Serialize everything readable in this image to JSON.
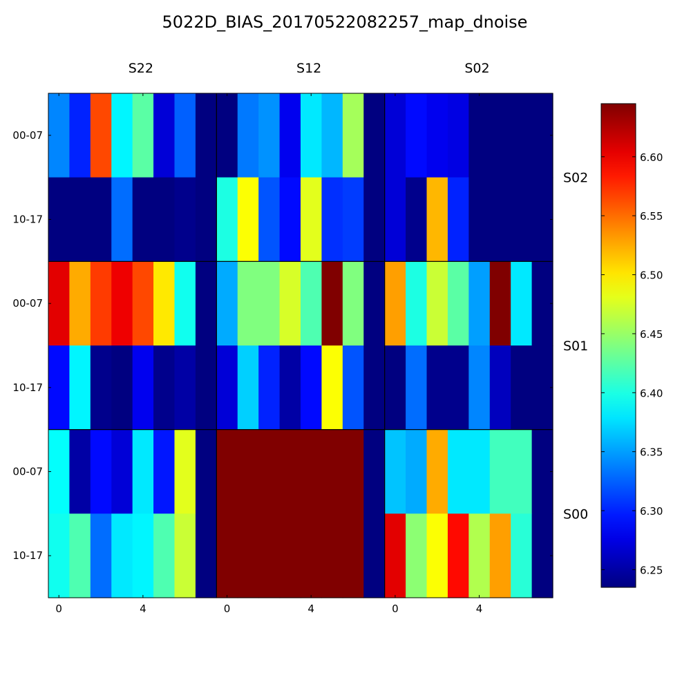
{
  "chart_data": {
    "type": "heatmap",
    "title": "5022D_BIAS_20170522082257_map_dnoise",
    "colormap": "jet",
    "vmin": 6.235,
    "vmax": 6.645,
    "colorbar_ticks": [
      "6.25",
      "6.30",
      "6.35",
      "6.40",
      "6.45",
      "6.50",
      "6.55",
      "6.60"
    ],
    "colorbar_tick_values": [
      6.25,
      6.3,
      6.35,
      6.4,
      6.45,
      6.5,
      6.55,
      6.6
    ],
    "column_labels": [
      "S22",
      "S12",
      "S02"
    ],
    "row_labels": [
      "S02",
      "S01",
      "S00"
    ],
    "y_tick_labels": [
      "00-07",
      "10-17"
    ],
    "x_tick_labels": [
      "0",
      "4"
    ],
    "x_tick_values": [
      0,
      4
    ],
    "cells_per_panel_x": 8,
    "rows": [
      [
        6.34,
        6.3,
        6.565,
        6.385,
        6.425,
        6.27,
        6.325,
        6.235,
        6.235,
        6.335,
        6.345,
        6.28,
        6.38,
        6.36,
        6.455,
        6.235,
        6.27,
        6.29,
        6.28,
        6.275,
        6.235,
        6.235,
        6.235,
        6.235
      ],
      [
        6.235,
        6.235,
        6.235,
        6.33,
        6.235,
        6.235,
        6.24,
        6.235,
        6.4,
        6.49,
        6.32,
        6.29,
        6.48,
        6.305,
        6.31,
        6.235,
        6.27,
        6.24,
        6.52,
        6.3,
        6.235,
        6.235,
        6.235,
        6.235
      ],
      [
        6.605,
        6.525,
        6.57,
        6.6,
        6.565,
        6.5,
        6.395,
        6.235,
        6.355,
        6.44,
        6.44,
        6.475,
        6.42,
        6.645,
        6.44,
        6.235,
        6.53,
        6.4,
        6.47,
        6.425,
        6.35,
        6.645,
        6.38,
        6.235
      ],
      [
        6.29,
        6.385,
        6.24,
        6.235,
        6.28,
        6.24,
        6.25,
        6.235,
        6.27,
        6.37,
        6.3,
        6.25,
        6.29,
        6.49,
        6.32,
        6.235,
        6.235,
        6.33,
        6.24,
        6.24,
        6.34,
        6.26,
        6.235,
        6.235
      ],
      [
        6.39,
        6.25,
        6.29,
        6.27,
        6.38,
        6.295,
        6.48,
        6.235,
        6.645,
        6.645,
        6.645,
        6.645,
        6.645,
        6.645,
        6.645,
        6.235,
        6.365,
        6.355,
        6.525,
        6.38,
        6.38,
        6.415,
        6.415,
        6.235
      ],
      [
        6.395,
        6.42,
        6.33,
        6.38,
        6.385,
        6.42,
        6.47,
        6.235,
        6.645,
        6.645,
        6.645,
        6.645,
        6.645,
        6.645,
        6.645,
        6.235,
        6.605,
        6.445,
        6.49,
        6.59,
        6.46,
        6.53,
        6.405,
        6.235
      ]
    ]
  }
}
